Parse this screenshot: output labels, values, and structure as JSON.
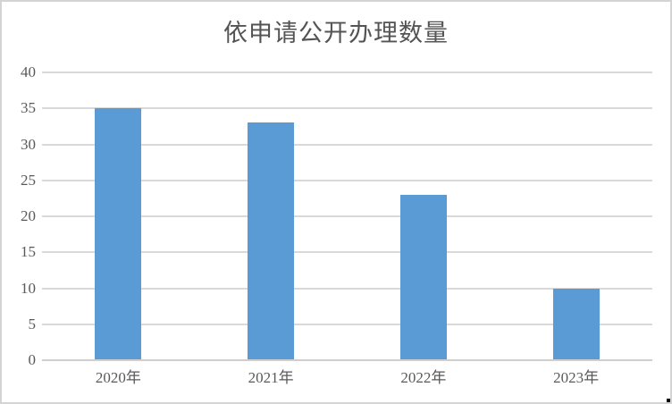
{
  "chart_data": {
    "type": "bar",
    "title": "依申请公开办理数量",
    "categories": [
      "2020年",
      "2021年",
      "2022年",
      "2023年"
    ],
    "values": [
      35,
      33,
      23,
      10
    ],
    "y_ticks": [
      0,
      5,
      10,
      15,
      20,
      25,
      30,
      35,
      40
    ],
    "ylim": [
      0,
      40
    ],
    "xlabel": "",
    "ylabel": "",
    "grid": true,
    "legend": false,
    "colors": {
      "bar": "#5B9BD5",
      "gridline": "#D9D9D9",
      "axis_line": "#CFCFCF",
      "text": "#595959",
      "title_text": "#545454",
      "frame_border": "#D4D4D4",
      "background": "#FFFFFF"
    }
  }
}
